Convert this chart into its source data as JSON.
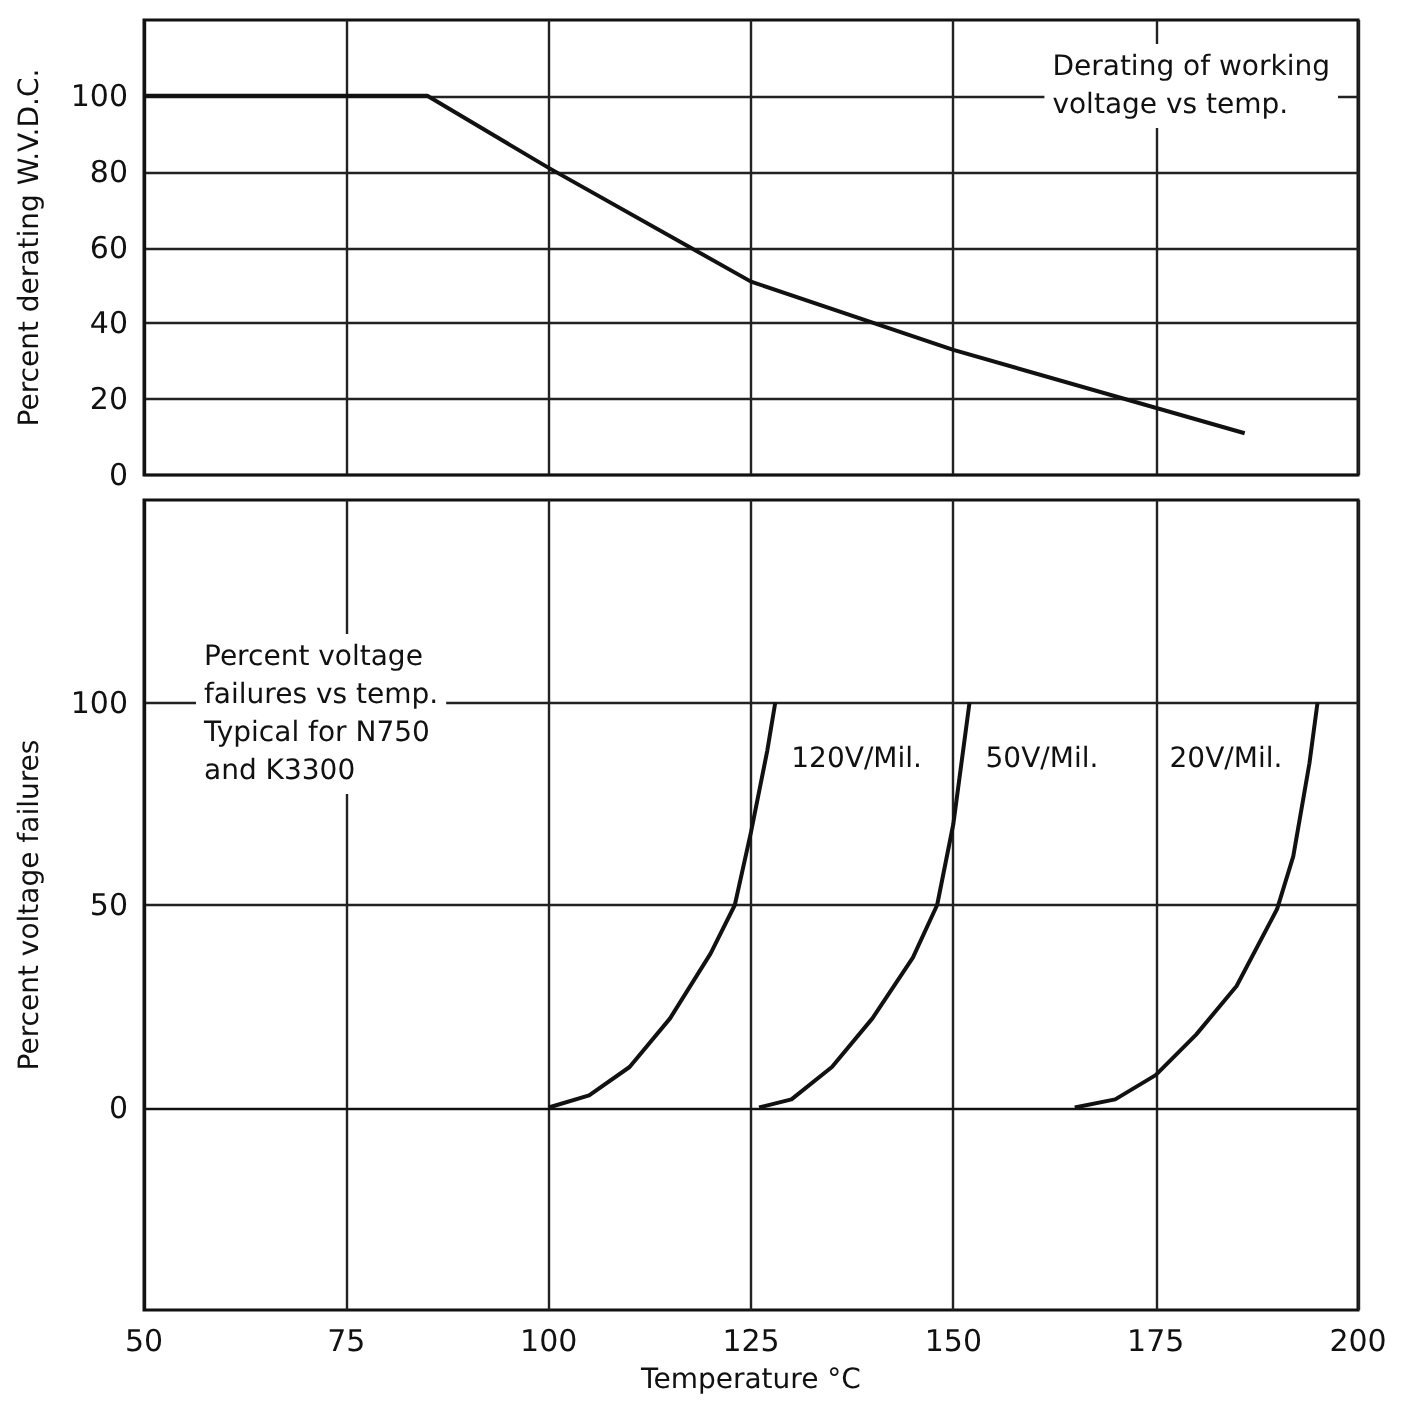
{
  "chart_data": [
    {
      "type": "line",
      "ylabel": "Percent derating W.V.D.C.",
      "annotations": [
        "Derating of working\nvoltage vs temp."
      ],
      "xlim": [
        50,
        200
      ],
      "xticks": [
        50,
        75,
        100,
        125,
        150,
        175,
        200
      ],
      "ylim": [
        0,
        120
      ],
      "yticks": [
        0,
        20,
        40,
        60,
        80,
        100
      ],
      "tick_labels": "y",
      "grid": true,
      "marker": "none",
      "line_style": "solid",
      "series": [
        {
          "color": "#111111",
          "x": [
            50,
            85,
            100,
            125,
            150,
            186
          ],
          "values": [
            100,
            100,
            81,
            51,
            33,
            11
          ]
        }
      ]
    },
    {
      "type": "line",
      "xlabel": "Temperature °C",
      "ylabel": "Percent voltage failures",
      "annotations": [
        "Percent voltage\nfailures vs temp.\nTypical for N750\nand K3300"
      ],
      "xlim": [
        50,
        200
      ],
      "xticks": [
        50,
        75,
        100,
        125,
        150,
        175,
        200
      ],
      "ylim": [
        -50,
        150
      ],
      "yticks": [
        0,
        50,
        100
      ],
      "grid": true,
      "marker": "none",
      "line_style": "solid",
      "series": [
        {
          "name": "120V/Mil.",
          "color": "#111111",
          "x": [
            100,
            105,
            110,
            115,
            120,
            123,
            125,
            127,
            128
          ],
          "values": [
            0,
            3,
            10,
            22,
            38,
            50,
            68,
            88,
            100
          ]
        },
        {
          "name": "50V/Mil.",
          "color": "#111111",
          "x": [
            126,
            130,
            135,
            140,
            145,
            148,
            150,
            151,
            152
          ],
          "values": [
            0,
            2,
            10,
            22,
            37,
            50,
            70,
            85,
            100
          ]
        },
        {
          "name": "20V/Mil.",
          "color": "#111111",
          "x": [
            165,
            170,
            175,
            180,
            185,
            190,
            192,
            194,
            195
          ],
          "values": [
            0,
            2,
            8,
            18,
            30,
            49,
            62,
            85,
            100
          ]
        }
      ]
    }
  ]
}
